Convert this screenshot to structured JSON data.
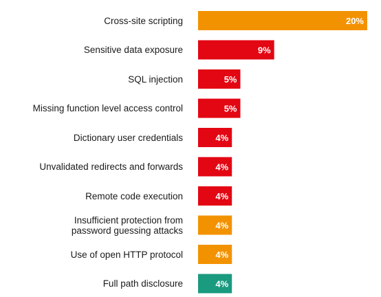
{
  "chart_data": {
    "type": "bar",
    "orientation": "horizontal",
    "title": "",
    "xlabel": "",
    "ylabel": "",
    "xlim": [
      0,
      20
    ],
    "grid": false,
    "legend": "none",
    "value_suffix": "%",
    "categories": [
      "Cross-site scripting",
      "Sensitive data exposure",
      "SQL injection",
      "Missing function level access control",
      "Dictionary user credentials",
      "Unvalidated redirects and forwards",
      "Remote code execution",
      "Insufficient protection from\npassword guessing attacks",
      "Use of open HTTP protocol",
      "Full path disclosure"
    ],
    "values": [
      20,
      9,
      5,
      5,
      4,
      4,
      4,
      4,
      4,
      4
    ],
    "value_labels": [
      "20%",
      "9%",
      "5%",
      "5%",
      "4%",
      "4%",
      "4%",
      "4%",
      "4%",
      "4%"
    ],
    "bar_colors": [
      "#F39200",
      "#E30613",
      "#E30613",
      "#E30613",
      "#E30613",
      "#E30613",
      "#E30613",
      "#F39200",
      "#F39200",
      "#1A9A7F"
    ]
  }
}
